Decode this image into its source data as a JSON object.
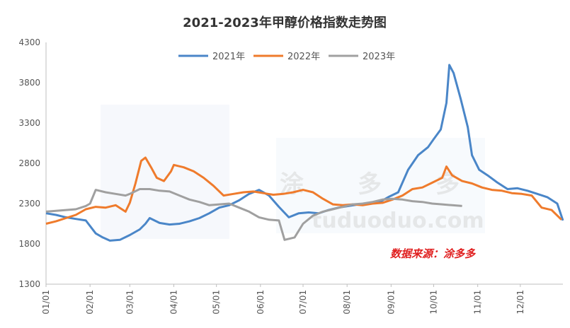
{
  "chart_data": {
    "type": "line",
    "title": "2021-2023年甲醇价格指数走势图",
    "xlabel": "",
    "ylabel": "",
    "ylim": [
      1300,
      4300
    ],
    "yticks": [
      1300,
      1800,
      2300,
      2800,
      3300,
      3800,
      4300
    ],
    "x_tick_labels": [
      "01/01",
      "02/01",
      "03/01",
      "04/01",
      "05/01",
      "06/01",
      "07/01",
      "08/01",
      "09/01",
      "10/01",
      "11/01",
      "12/01"
    ],
    "grid": false,
    "legend_position": "top-center",
    "series": [
      {
        "name": "2021年",
        "color": "#4a86c8",
        "points": [
          [
            "01/01",
            2180
          ],
          [
            "01/08",
            2160
          ],
          [
            "01/15",
            2130
          ],
          [
            "01/22",
            2110
          ],
          [
            "01/29",
            2090
          ],
          [
            "02/05",
            1930
          ],
          [
            "02/10",
            1880
          ],
          [
            "02/15",
            1840
          ],
          [
            "02/22",
            1850
          ],
          [
            "03/01",
            1910
          ],
          [
            "03/08",
            1980
          ],
          [
            "03/12",
            2050
          ],
          [
            "03/15",
            2120
          ],
          [
            "03/22",
            2060
          ],
          [
            "03/29",
            2040
          ],
          [
            "04/05",
            2050
          ],
          [
            "04/12",
            2080
          ],
          [
            "04/19",
            2120
          ],
          [
            "04/26",
            2180
          ],
          [
            "05/03",
            2250
          ],
          [
            "05/10",
            2280
          ],
          [
            "05/17",
            2340
          ],
          [
            "05/24",
            2420
          ],
          [
            "05/31",
            2470
          ],
          [
            "06/07",
            2400
          ],
          [
            "06/14",
            2260
          ],
          [
            "06/21",
            2130
          ],
          [
            "06/28",
            2180
          ],
          [
            "07/05",
            2190
          ],
          [
            "07/12",
            2180
          ],
          [
            "07/19",
            2220
          ],
          [
            "07/26",
            2250
          ],
          [
            "08/02",
            2270
          ],
          [
            "08/09",
            2290
          ],
          [
            "08/16",
            2300
          ],
          [
            "08/23",
            2310
          ],
          [
            "08/30",
            2380
          ],
          [
            "09/06",
            2440
          ],
          [
            "09/13",
            2720
          ],
          [
            "09/20",
            2900
          ],
          [
            "09/27",
            3000
          ],
          [
            "10/01",
            3100
          ],
          [
            "10/06",
            3220
          ],
          [
            "10/10",
            3550
          ],
          [
            "10/12",
            4020
          ],
          [
            "10/15",
            3920
          ],
          [
            "10/20",
            3600
          ],
          [
            "10/25",
            3250
          ],
          [
            "10/28",
            2900
          ],
          [
            "11/02",
            2720
          ],
          [
            "11/08",
            2650
          ],
          [
            "11/15",
            2560
          ],
          [
            "11/22",
            2480
          ],
          [
            "11/29",
            2490
          ],
          [
            "12/06",
            2460
          ],
          [
            "12/13",
            2420
          ],
          [
            "12/20",
            2380
          ],
          [
            "12/27",
            2300
          ],
          [
            "12/31",
            2090
          ]
        ]
      },
      {
        "name": "2022年",
        "color": "#ef7b2c",
        "points": [
          [
            "01/01",
            2050
          ],
          [
            "01/08",
            2080
          ],
          [
            "01/15",
            2120
          ],
          [
            "01/22",
            2160
          ],
          [
            "01/29",
            2230
          ],
          [
            "02/05",
            2260
          ],
          [
            "02/12",
            2250
          ],
          [
            "02/19",
            2280
          ],
          [
            "02/26",
            2200
          ],
          [
            "03/01",
            2310
          ],
          [
            "03/05",
            2550
          ],
          [
            "03/09",
            2830
          ],
          [
            "03/12",
            2870
          ],
          [
            "03/16",
            2750
          ],
          [
            "03/20",
            2620
          ],
          [
            "03/25",
            2580
          ],
          [
            "03/30",
            2700
          ],
          [
            "04/01",
            2780
          ],
          [
            "04/08",
            2750
          ],
          [
            "04/15",
            2700
          ],
          [
            "04/22",
            2620
          ],
          [
            "04/29",
            2520
          ],
          [
            "05/06",
            2400
          ],
          [
            "05/13",
            2420
          ],
          [
            "05/20",
            2440
          ],
          [
            "05/27",
            2450
          ],
          [
            "06/03",
            2430
          ],
          [
            "06/10",
            2410
          ],
          [
            "06/17",
            2420
          ],
          [
            "06/24",
            2440
          ],
          [
            "07/01",
            2470
          ],
          [
            "07/08",
            2440
          ],
          [
            "07/15",
            2360
          ],
          [
            "07/22",
            2290
          ],
          [
            "07/29",
            2280
          ],
          [
            "08/05",
            2290
          ],
          [
            "08/12",
            2280
          ],
          [
            "08/19",
            2300
          ],
          [
            "08/26",
            2310
          ],
          [
            "09/02",
            2350
          ],
          [
            "09/09",
            2400
          ],
          [
            "09/16",
            2480
          ],
          [
            "09/23",
            2500
          ],
          [
            "09/30",
            2560
          ],
          [
            "10/07",
            2620
          ],
          [
            "10/10",
            2760
          ],
          [
            "10/14",
            2650
          ],
          [
            "10/21",
            2580
          ],
          [
            "10/28",
            2550
          ],
          [
            "11/04",
            2500
          ],
          [
            "11/11",
            2470
          ],
          [
            "11/18",
            2460
          ],
          [
            "11/25",
            2430
          ],
          [
            "12/02",
            2420
          ],
          [
            "12/09",
            2400
          ],
          [
            "12/16",
            2250
          ],
          [
            "12/23",
            2220
          ],
          [
            "12/30",
            2100
          ]
        ]
      },
      {
        "name": "2023年",
        "color": "#a0a0a0",
        "points": [
          [
            "01/01",
            2200
          ],
          [
            "01/08",
            2210
          ],
          [
            "01/15",
            2220
          ],
          [
            "01/22",
            2230
          ],
          [
            "01/29",
            2270
          ],
          [
            "02/01",
            2300
          ],
          [
            "02/05",
            2470
          ],
          [
            "02/12",
            2440
          ],
          [
            "02/19",
            2420
          ],
          [
            "02/26",
            2400
          ],
          [
            "03/01",
            2420
          ],
          [
            "03/08",
            2480
          ],
          [
            "03/15",
            2480
          ],
          [
            "03/22",
            2460
          ],
          [
            "03/29",
            2450
          ],
          [
            "04/05",
            2400
          ],
          [
            "04/12",
            2350
          ],
          [
            "04/19",
            2320
          ],
          [
            "04/26",
            2280
          ],
          [
            "05/03",
            2290
          ],
          [
            "05/10",
            2300
          ],
          [
            "05/17",
            2250
          ],
          [
            "05/24",
            2200
          ],
          [
            "05/31",
            2130
          ],
          [
            "06/07",
            2100
          ],
          [
            "06/14",
            2090
          ],
          [
            "06/18",
            1850
          ],
          [
            "06/25",
            1880
          ],
          [
            "07/01",
            2050
          ],
          [
            "07/08",
            2150
          ],
          [
            "07/15",
            2200
          ],
          [
            "07/22",
            2230
          ],
          [
            "07/29",
            2260
          ],
          [
            "08/05",
            2290
          ],
          [
            "08/12",
            2300
          ],
          [
            "08/19",
            2320
          ],
          [
            "08/26",
            2350
          ],
          [
            "09/02",
            2360
          ],
          [
            "09/09",
            2350
          ],
          [
            "09/16",
            2330
          ],
          [
            "09/23",
            2320
          ],
          [
            "09/30",
            2300
          ],
          [
            "10/07",
            2290
          ],
          [
            "10/14",
            2280
          ],
          [
            "10/21",
            2270
          ]
        ]
      }
    ],
    "annotation": "数据来源：涂多多",
    "watermark_text": [
      "涂",
      "多",
      "多",
      "tuduoduo.com"
    ]
  }
}
